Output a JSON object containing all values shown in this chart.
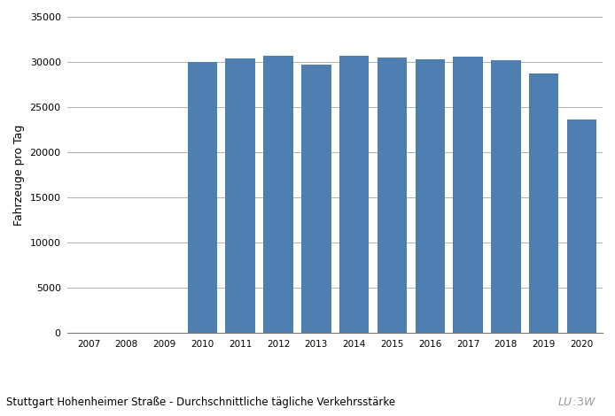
{
  "years": [
    2007,
    2008,
    2009,
    2010,
    2011,
    2012,
    2013,
    2014,
    2015,
    2016,
    2017,
    2018,
    2019,
    2020
  ],
  "values": [
    0,
    0,
    0,
    30000,
    30400,
    30700,
    29700,
    30700,
    30500,
    30300,
    30600,
    30200,
    28700,
    23600
  ],
  "bar_color": "#4E7FB0",
  "ylabel": "Fahrzeuge pro Tag",
  "ylim": [
    0,
    35000
  ],
  "yticks": [
    0,
    5000,
    10000,
    15000,
    20000,
    25000,
    30000,
    35000
  ],
  "caption": "Stuttgart Hohenheimer Straße - Durchschnittliche tägliche Verkehrsstärke",
  "background_color": "#ffffff",
  "grid_color": "#b0b0b0"
}
